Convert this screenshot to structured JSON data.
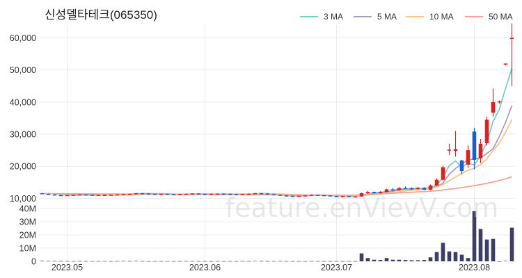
{
  "chart_data": {
    "type": "candlestick",
    "title": "신성델타테크(065350)",
    "watermark": "feature.enVievV.com",
    "x_tick_labels": [
      "2023.05",
      "2023.06",
      "2023.07",
      "2023.08"
    ],
    "price_axis": {
      "ticks": [
        "10,000",
        "20,000",
        "30,000",
        "40,000",
        "50,000",
        "60,000"
      ],
      "ylim": [
        9000,
        64000
      ]
    },
    "volume_axis": {
      "ticks": [
        "0",
        "10M",
        "20M",
        "30M",
        "40M"
      ],
      "ylim": [
        0,
        40000000
      ]
    },
    "legend": [
      {
        "name": "3 MA",
        "color": "#7ecdc4"
      },
      {
        "name": "5 MA",
        "color": "#a99ec1"
      },
      {
        "name": "10 MA",
        "color": "#f4c48a"
      },
      {
        "name": "50 MA",
        "color": "#f1a494"
      }
    ],
    "legend_placement": "top-right",
    "colors": {
      "up": "#e02020",
      "down": "#1a5fd0",
      "volume": "#3d3d66",
      "grid": "#ececec"
    },
    "candles": [
      [
        11600,
        11700,
        11300,
        11400,
        300000
      ],
      [
        11400,
        11500,
        11100,
        11200,
        250000
      ],
      [
        11200,
        11300,
        10900,
        11000,
        250000
      ],
      [
        11000,
        11100,
        10800,
        10900,
        200000
      ],
      [
        10900,
        11100,
        10800,
        11000,
        200000
      ],
      [
        11000,
        11200,
        10900,
        11100,
        200000
      ],
      [
        11100,
        11300,
        11000,
        11200,
        200000
      ],
      [
        11200,
        11300,
        11000,
        11100,
        150000
      ],
      [
        11100,
        11200,
        10900,
        11000,
        150000
      ],
      [
        11000,
        11100,
        10900,
        11050,
        150000
      ],
      [
        11050,
        11200,
        10900,
        11000,
        200000
      ],
      [
        11000,
        11200,
        10900,
        11100,
        150000
      ],
      [
        11100,
        11300,
        11000,
        11200,
        200000
      ],
      [
        11200,
        11400,
        11100,
        11300,
        250000
      ],
      [
        11300,
        11500,
        11200,
        11400,
        200000
      ],
      [
        11400,
        11700,
        11300,
        11600,
        300000
      ],
      [
        11600,
        11700,
        11400,
        11500,
        200000
      ],
      [
        11500,
        11600,
        11300,
        11400,
        150000
      ],
      [
        11400,
        11500,
        11200,
        11300,
        150000
      ],
      [
        11300,
        11500,
        11200,
        11400,
        150000
      ],
      [
        11400,
        11500,
        11200,
        11300,
        150000
      ],
      [
        11300,
        11400,
        11100,
        11200,
        150000
      ],
      [
        11200,
        11400,
        11100,
        11300,
        150000
      ],
      [
        11300,
        11500,
        11200,
        11400,
        200000
      ],
      [
        11400,
        11600,
        11300,
        11500,
        200000
      ],
      [
        11500,
        11600,
        11300,
        11400,
        150000
      ],
      [
        11400,
        11500,
        11200,
        11300,
        150000
      ],
      [
        11300,
        11500,
        11200,
        11400,
        150000
      ],
      [
        11400,
        11500,
        11300,
        11450,
        150000
      ],
      [
        11450,
        11600,
        11300,
        11400,
        150000
      ],
      [
        11400,
        11500,
        11200,
        11300,
        150000
      ],
      [
        11300,
        11400,
        11100,
        11200,
        150000
      ],
      [
        11200,
        11400,
        11100,
        11350,
        200000
      ],
      [
        11350,
        11500,
        11200,
        11400,
        150000
      ],
      [
        11400,
        11700,
        11300,
        11600,
        300000
      ],
      [
        11600,
        11700,
        11400,
        11500,
        200000
      ],
      [
        11500,
        11600,
        11200,
        11300,
        200000
      ],
      [
        11300,
        11400,
        11000,
        11100,
        200000
      ],
      [
        11100,
        11200,
        10800,
        10900,
        200000
      ],
      [
        10900,
        11000,
        10700,
        10800,
        150000
      ],
      [
        10800,
        10900,
        10600,
        10700,
        150000
      ],
      [
        10700,
        10900,
        10600,
        10800,
        150000
      ],
      [
        10800,
        11000,
        10700,
        10900,
        150000
      ],
      [
        10900,
        11200,
        10800,
        11100,
        200000
      ],
      [
        11100,
        11200,
        10900,
        11000,
        150000
      ],
      [
        11000,
        11100,
        10800,
        10900,
        150000
      ],
      [
        10900,
        11000,
        10600,
        10700,
        150000
      ],
      [
        10700,
        10800,
        10500,
        10600,
        150000
      ],
      [
        10600,
        10800,
        10500,
        10700,
        150000
      ],
      [
        10700,
        10800,
        10400,
        10500,
        150000
      ],
      [
        10500,
        10700,
        10400,
        10600,
        150000
      ],
      [
        10600,
        11800,
        10500,
        11600,
        6000000
      ],
      [
        11600,
        12300,
        11400,
        12000,
        2500000
      ],
      [
        12000,
        12100,
        11400,
        11600,
        1200000
      ],
      [
        11600,
        12200,
        11500,
        12000,
        1000000
      ],
      [
        12000,
        13000,
        11800,
        12800,
        2500000
      ],
      [
        12800,
        13200,
        12300,
        12600,
        1200000
      ],
      [
        12600,
        13500,
        12400,
        13200,
        1200000
      ],
      [
        13200,
        13700,
        12900,
        13100,
        1000000
      ],
      [
        13100,
        13400,
        12700,
        12900,
        800000
      ],
      [
        12900,
        13500,
        12600,
        13300,
        800000
      ],
      [
        13300,
        13500,
        12500,
        12700,
        1000000
      ],
      [
        12700,
        14300,
        12500,
        14000,
        3000000
      ],
      [
        14000,
        16200,
        13800,
        15800,
        7000000
      ],
      [
        15800,
        20200,
        15500,
        19700,
        14000000
      ],
      [
        25000,
        27000,
        23500,
        25200,
        7500000
      ],
      [
        24800,
        31000,
        23000,
        25300,
        7000000
      ],
      [
        21800,
        22000,
        17500,
        18500,
        5000000
      ],
      [
        20500,
        26500,
        19500,
        25000,
        2500000
      ],
      [
        30800,
        32000,
        19000,
        22000,
        38000000
      ],
      [
        22500,
        28500,
        21000,
        27000,
        24500000
      ],
      [
        27200,
        35500,
        26500,
        34500,
        16500000
      ],
      [
        36700,
        44200,
        35500,
        40000,
        17000000
      ],
      [
        40000,
        40500,
        39500,
        40200,
        0
      ],
      [
        52000,
        52000,
        51500,
        52000,
        300000
      ],
      [
        60000,
        64500,
        45000,
        60000,
        25500000
      ]
    ],
    "ma": {
      "3 MA": [
        null,
        null,
        11380,
        11200,
        11080,
        11020,
        11050,
        11120,
        11100,
        11030,
        11020,
        11030,
        11100,
        11200,
        11300,
        11430,
        11500,
        11500,
        11400,
        11370,
        11330,
        11300,
        11270,
        11300,
        11400,
        11430,
        11400,
        11370,
        11370,
        11380,
        11370,
        11300,
        11280,
        11320,
        11450,
        11500,
        11470,
        11300,
        11100,
        10930,
        10800,
        10770,
        10800,
        10930,
        11000,
        11000,
        10870,
        10730,
        10670,
        10600,
        10600,
        10900,
        11400,
        11730,
        11870,
        12130,
        12470,
        12870,
        12970,
        13070,
        13100,
        13030,
        13300,
        14170,
        16500,
        20230,
        21680,
        19670,
        20950,
        20430,
        23290,
        27520,
        34000,
        37800,
        44360,
        50500
      ],
      "5 MA": [
        null,
        null,
        null,
        null,
        11100,
        11040,
        11040,
        11080,
        11080,
        11090,
        11070,
        11070,
        11090,
        11130,
        11200,
        11340,
        11400,
        11440,
        11440,
        11440,
        11380,
        11320,
        11300,
        11320,
        11340,
        11360,
        11360,
        11380,
        11410,
        11410,
        11370,
        11350,
        11330,
        11330,
        11390,
        11400,
        11420,
        11400,
        11280,
        11120,
        10960,
        10860,
        10820,
        10860,
        10920,
        10940,
        10920,
        10840,
        10760,
        10670,
        10640,
        10820,
        11080,
        11300,
        11580,
        11990,
        12220,
        12520,
        12840,
        12940,
        13020,
        13060,
        13180,
        13580,
        14770,
        17540,
        19300,
        20690,
        21920,
        22340,
        22600,
        23960,
        25480,
        29300,
        33740,
        38900
      ],
      "10 MA": [
        null,
        null,
        null,
        null,
        null,
        null,
        null,
        null,
        null,
        11150,
        11120,
        11090,
        11080,
        11090,
        11100,
        11150,
        11230,
        11260,
        11280,
        11300,
        11310,
        11330,
        11360,
        11380,
        11380,
        11380,
        11370,
        11380,
        11380,
        11380,
        11370,
        11350,
        11340,
        11360,
        11360,
        11380,
        11390,
        11390,
        11350,
        11270,
        11170,
        11090,
        11010,
        10950,
        10900,
        10870,
        10860,
        10840,
        10800,
        10760,
        10780,
        10880,
        11020,
        11160,
        11350,
        11580,
        11780,
        12060,
        12310,
        12510,
        12660,
        12850,
        13080,
        13500,
        14290,
        15460,
        16690,
        17680,
        18770,
        19340,
        20490,
        22310,
        24880,
        27240,
        30630,
        34570
      ],
      "50 MA": [
        11500,
        11480,
        11460,
        11440,
        11420,
        11410,
        11400,
        11390,
        11380,
        11370,
        11360,
        11350,
        11340,
        11330,
        11320,
        11310,
        11300,
        11290,
        11280,
        11270,
        11260,
        11250,
        11240,
        11230,
        11220,
        11210,
        11200,
        11190,
        11180,
        11170,
        11160,
        11150,
        11140,
        11130,
        11120,
        11110,
        11100,
        11090,
        11080,
        11070,
        11060,
        11050,
        11040,
        11030,
        11020,
        11010,
        11000,
        11000,
        11000,
        11000,
        11020,
        11100,
        11200,
        11300,
        11400,
        11500,
        11600,
        11700,
        11800,
        11900,
        12000,
        12100,
        12250,
        12400,
        12600,
        12850,
        13100,
        13350,
        13650,
        13950,
        14300,
        14700,
        15100,
        15600,
        16100,
        16700
      ]
    }
  }
}
